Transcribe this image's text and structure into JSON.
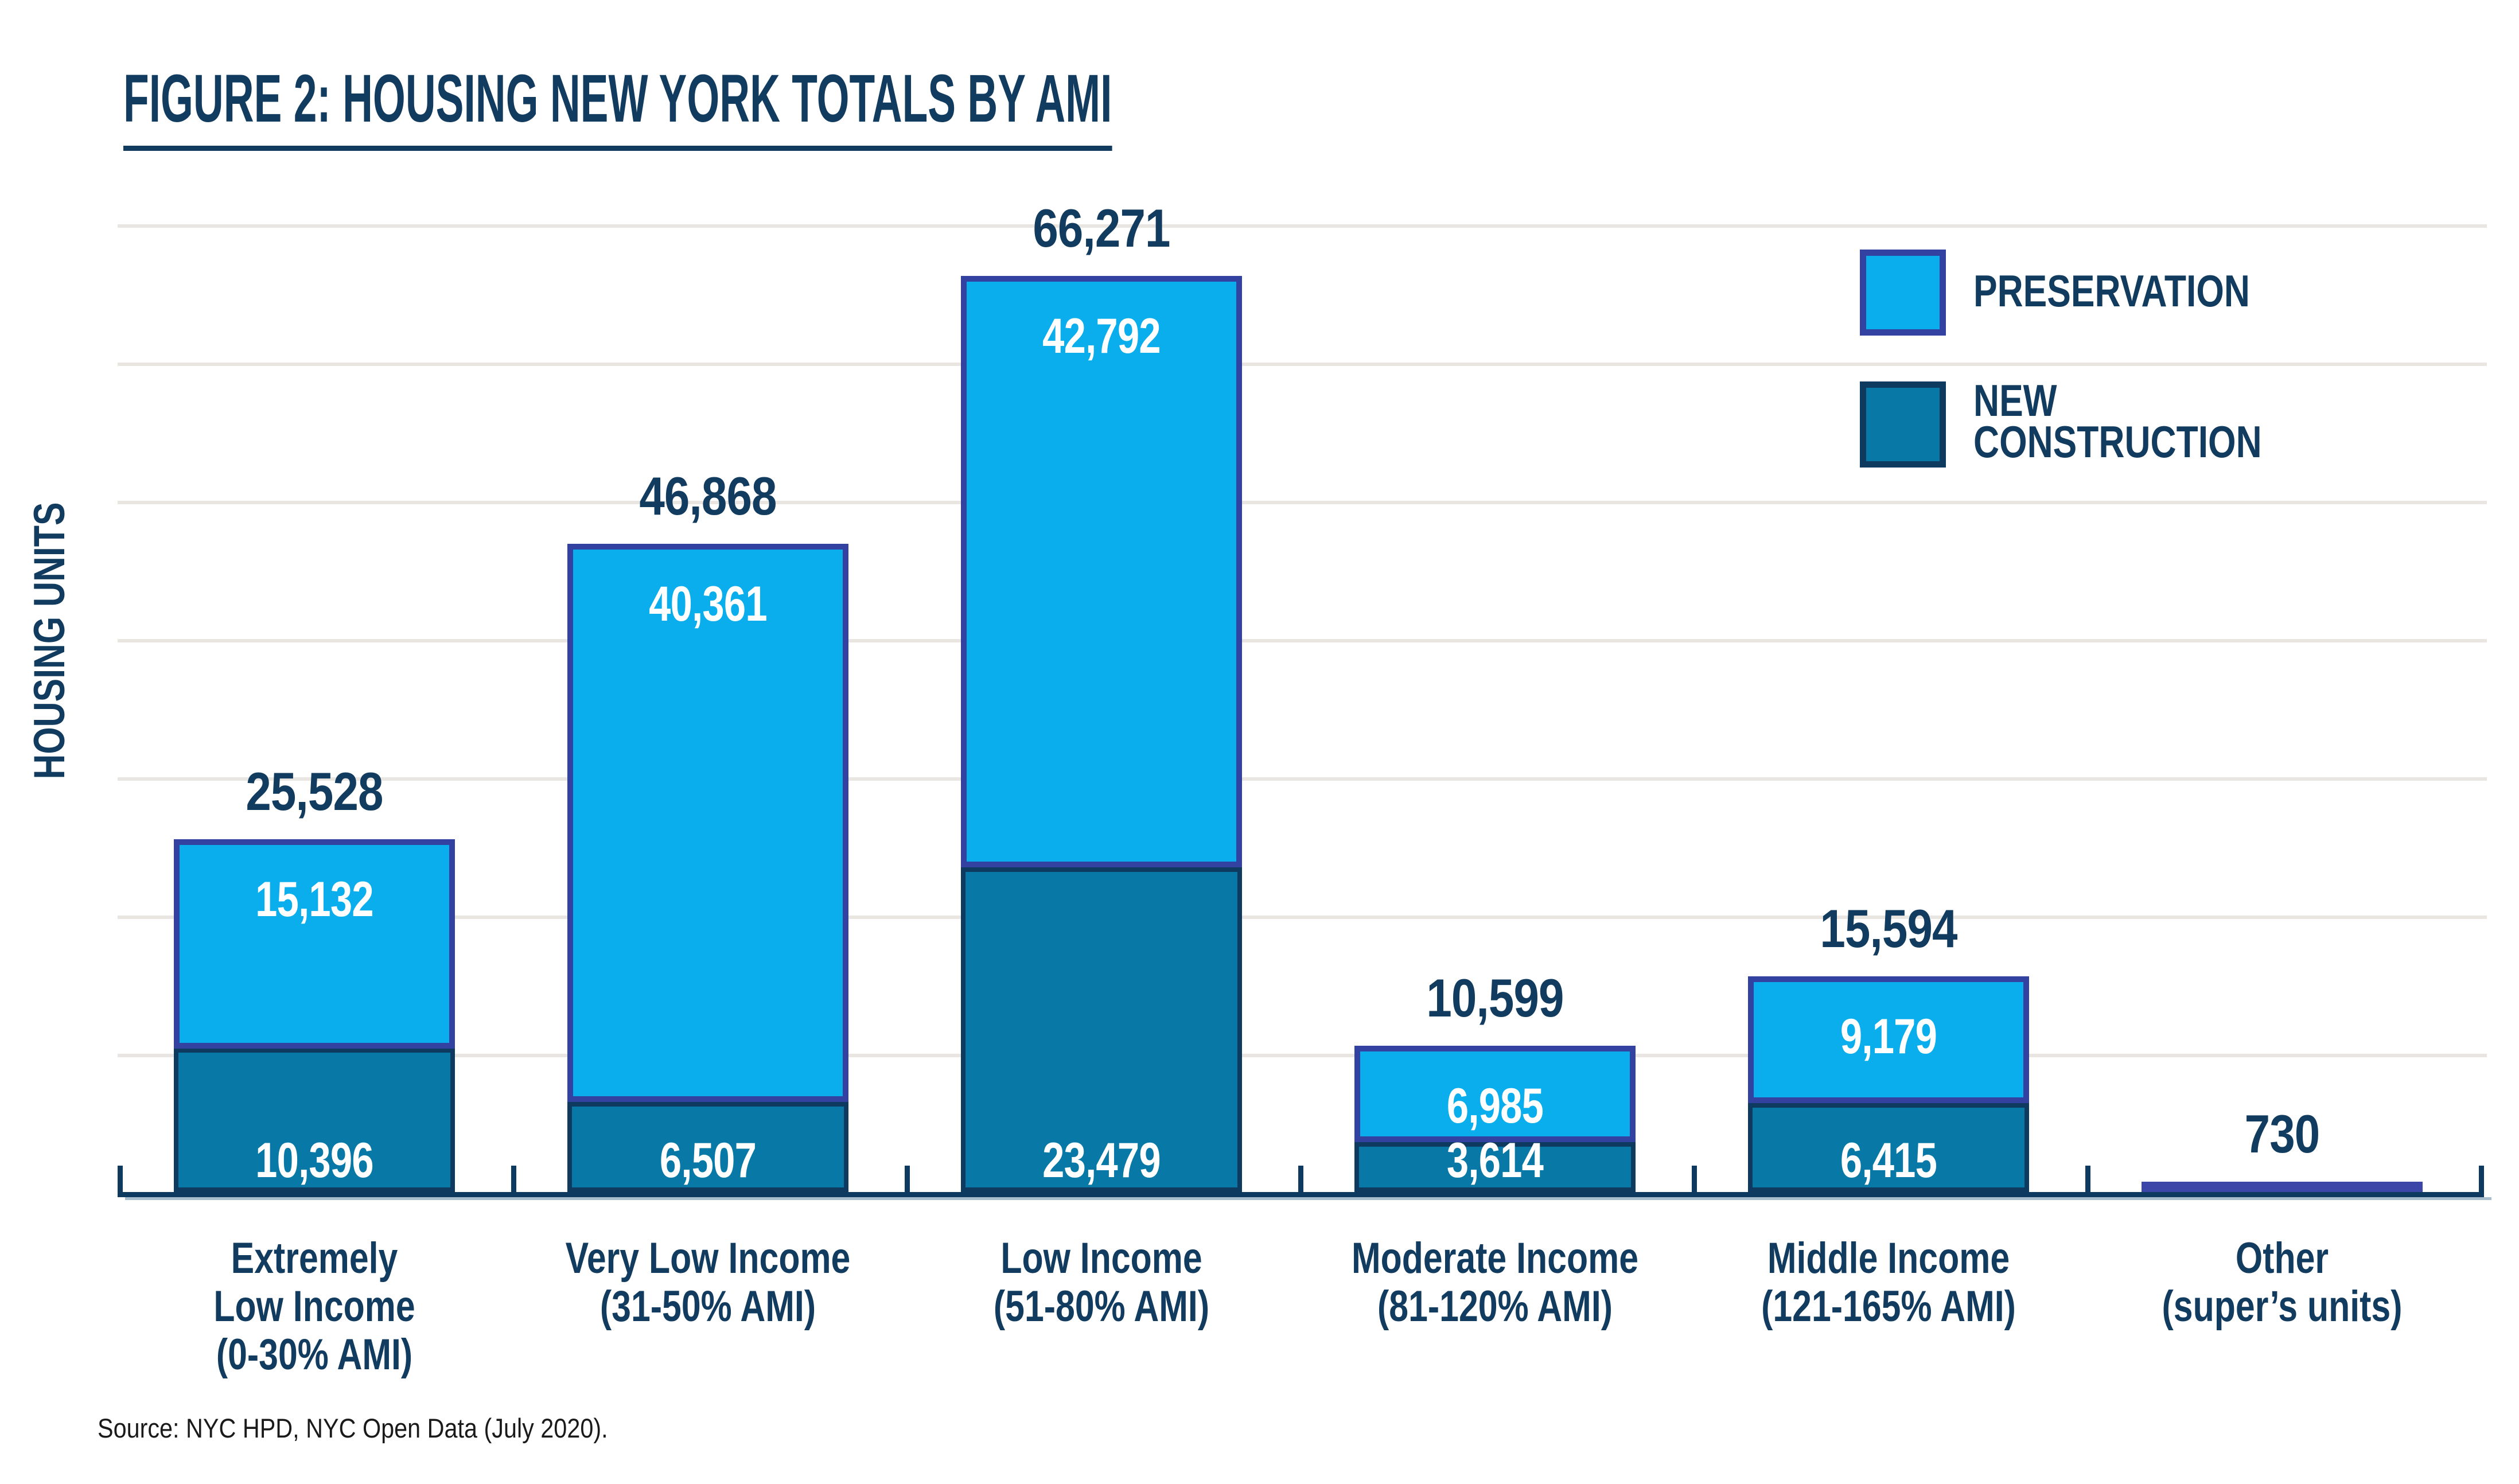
{
  "figure": {
    "title": "FIGURE 2: HOUSING NEW YORK TOTALS BY AMI",
    "source": "Source: NYC HPD, NYC Open Data (July 2020).",
    "colors": {
      "navy_text": "#123C5F",
      "axis_navy": "#0D3A5E",
      "preservation_fill": "#0AAEEC",
      "preservation_border": "#3342A0",
      "new_construction_fill": "#0879A6",
      "new_construction_border": "#0D3A5E",
      "other_bar_fill": "#3C46A8",
      "gridline": "#E9E6E2",
      "white_label": "#FFFFFF"
    }
  },
  "chart_data": {
    "type": "bar",
    "stacked": true,
    "title": "FIGURE 2: HOUSING NEW YORK TOTALS BY AMI",
    "xlabel": "",
    "ylabel": "HOUSING UNITS",
    "ylim": [
      0,
      70000
    ],
    "gridline_interval": 10000,
    "grid": "horizontal",
    "legend_position": "top-right",
    "categories": [
      [
        "Extremely",
        "Low Income",
        "(0-30% AMI)"
      ],
      [
        "Very Low Income",
        "(31-50% AMI)"
      ],
      [
        "Low Income",
        "(51-80% AMI)"
      ],
      [
        "Moderate Income",
        "(81-120% AMI)"
      ],
      [
        "Middle Income",
        "(121-165% AMI)"
      ],
      [
        "Other",
        "(super’s units)"
      ]
    ],
    "series": [
      {
        "name": "PRESERVATION",
        "color": "#0AAEEC",
        "border_color": "#3342A0",
        "values": [
          15132,
          40361,
          42792,
          6985,
          9179,
          0
        ],
        "value_labels": [
          "15,132",
          "40,361",
          "42,792",
          "6,985",
          "9,179",
          ""
        ]
      },
      {
        "name": "NEW CONSTRUCTION",
        "color": "#0879A6",
        "border_color": "#0D3A5E",
        "values": [
          10396,
          6507,
          23479,
          3614,
          6415,
          0
        ],
        "value_labels": [
          "10,396",
          "6,507",
          "23,479",
          "3,614",
          "6,415",
          ""
        ]
      }
    ],
    "totals": [
      25528,
      46868,
      66271,
      10599,
      15594,
      730
    ],
    "total_labels": [
      "25,528",
      "46,868",
      "66,271",
      "10,599",
      "15,594",
      "730"
    ],
    "other_bar": {
      "category": "Other (super’s units)",
      "value": 730,
      "label": "730",
      "color": "#3C46A8",
      "note": "shown as thin solid bar, no segment split"
    }
  }
}
